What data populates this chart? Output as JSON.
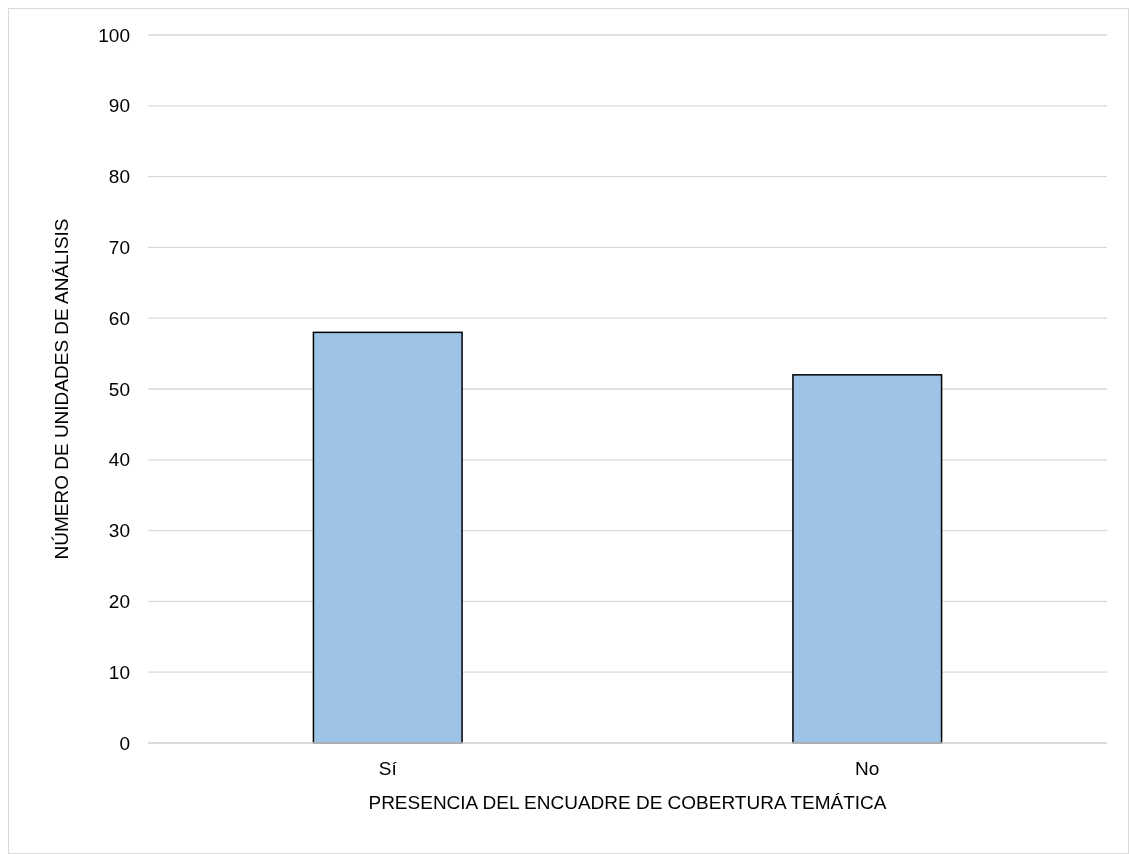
{
  "chart_data": {
    "type": "bar",
    "xlabel": "PRESENCIA DEL ENCUADRE DE COBERTURA TEMÁTICA",
    "ylabel": "NÚMERO DE UNIDADES DE ANÁLISIS",
    "categories": [
      "Sí",
      "No"
    ],
    "values": [
      58,
      52
    ],
    "color": "#9dc3e6",
    "ylim": [
      0,
      100
    ],
    "yticks": [
      0,
      10,
      20,
      30,
      40,
      50,
      60,
      70,
      80,
      90,
      100
    ],
    "grid": "y"
  }
}
